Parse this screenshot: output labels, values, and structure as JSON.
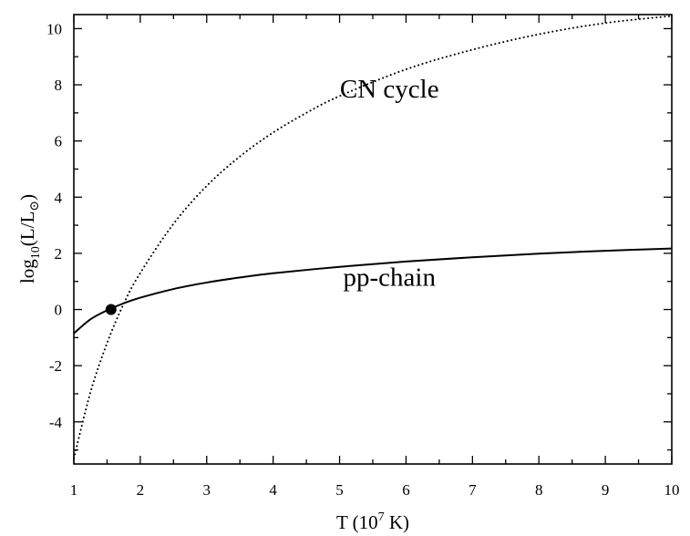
{
  "chart_data": {
    "type": "line",
    "title": "",
    "xlabel": {
      "base": "T (10",
      "sup": "7",
      "tail": " K)"
    },
    "ylabel": {
      "base": "log",
      "sub": "10",
      "mid": "(L/L",
      "sunsub": "⊙",
      "tail": ")"
    },
    "xlim": [
      1,
      10
    ],
    "ylim": [
      -5.5,
      10.5
    ],
    "xticks": [
      1,
      2,
      3,
      4,
      5,
      6,
      7,
      8,
      9,
      10
    ],
    "xtick_labels": [
      "1",
      "2",
      "3",
      "4",
      "5",
      "6",
      "7",
      "8",
      "9",
      "10"
    ],
    "yticks": [
      -4,
      -2,
      0,
      2,
      4,
      6,
      8,
      10
    ],
    "ytick_labels": [
      "-4",
      "-2",
      "0",
      "2",
      "4",
      "6",
      "8",
      "10"
    ],
    "grid": false,
    "series": [
      {
        "name": "pp-chain",
        "style": "solid",
        "color": "#000000",
        "x": [
          1.0,
          1.25,
          1.5,
          1.75,
          2.0,
          2.5,
          3.0,
          3.5,
          4.0,
          5.0,
          6.0,
          7.0,
          8.0,
          9.0,
          10.0
        ],
        "y": [
          -0.85,
          -0.35,
          -0.03,
          0.22,
          0.42,
          0.73,
          0.96,
          1.14,
          1.29,
          1.52,
          1.71,
          1.86,
          1.99,
          2.09,
          2.17
        ]
      },
      {
        "name": "CN cycle",
        "style": "dotted",
        "color": "#000000",
        "x": [
          1.0,
          1.25,
          1.5,
          1.75,
          2.0,
          2.5,
          3.0,
          3.5,
          4.0,
          4.5,
          5.0,
          6.0,
          7.0,
          8.0,
          9.0,
          10.0
        ],
        "y": [
          -5.3,
          -2.95,
          -1.2,
          0.2,
          1.3,
          3.05,
          4.4,
          5.45,
          6.3,
          7.0,
          7.6,
          8.55,
          9.25,
          9.8,
          10.2,
          10.45
        ]
      }
    ],
    "markers": [
      {
        "x": 1.56,
        "y": 0.0,
        "color": "#000000"
      }
    ],
    "annotations": [
      {
        "text": "CN cycle",
        "x": 5.75,
        "y": 7.55
      },
      {
        "text": "pp-chain",
        "x": 5.75,
        "y": 0.85
      }
    ]
  }
}
